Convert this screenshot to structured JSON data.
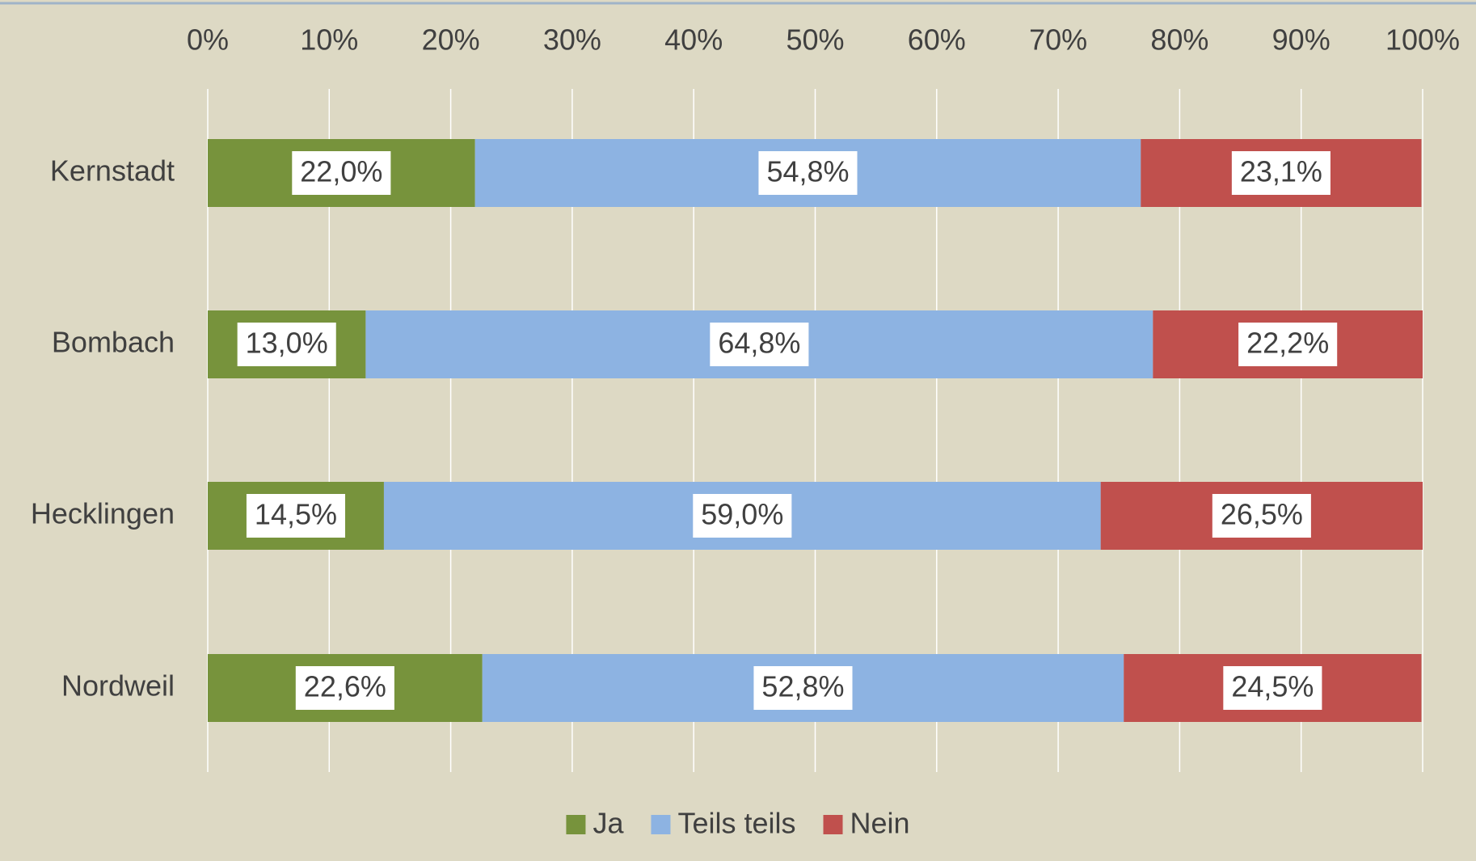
{
  "chart_data": {
    "type": "stacked_bar_horizontal",
    "categories": [
      "Kernstadt",
      "Bombach",
      "Hecklingen",
      "Nordweil"
    ],
    "series": [
      {
        "name": "Ja",
        "color": "#77933c",
        "values": [
          22.0,
          13.0,
          14.5,
          22.6
        ],
        "value_labels": [
          "22,0%",
          "13,0%",
          "14,5%",
          "22,6%"
        ]
      },
      {
        "name": "Teils teils",
        "color": "#8db3e2",
        "values": [
          54.8,
          64.8,
          59.0,
          52.8
        ],
        "value_labels": [
          "54,8%",
          "64,8%",
          "59,0%",
          "52,8%"
        ]
      },
      {
        "name": "Nein",
        "color": "#c0504d",
        "values": [
          23.1,
          22.2,
          26.5,
          24.5
        ],
        "value_labels": [
          "23,1%",
          "22,2%",
          "26,5%",
          "24,5%"
        ]
      }
    ],
    "xlim": [
      0,
      100
    ],
    "xticks": [
      {
        "value": 0,
        "label": "0%"
      },
      {
        "value": 10,
        "label": "10%"
      },
      {
        "value": 20,
        "label": "20%"
      },
      {
        "value": 30,
        "label": "30%"
      },
      {
        "value": 40,
        "label": "40%"
      },
      {
        "value": 50,
        "label": "50%"
      },
      {
        "value": 60,
        "label": "60%"
      },
      {
        "value": 70,
        "label": "70%"
      },
      {
        "value": 80,
        "label": "80%"
      },
      {
        "value": 90,
        "label": "90%"
      },
      {
        "value": 100,
        "label": "100%"
      }
    ],
    "grid": true,
    "legend": "bottom"
  }
}
